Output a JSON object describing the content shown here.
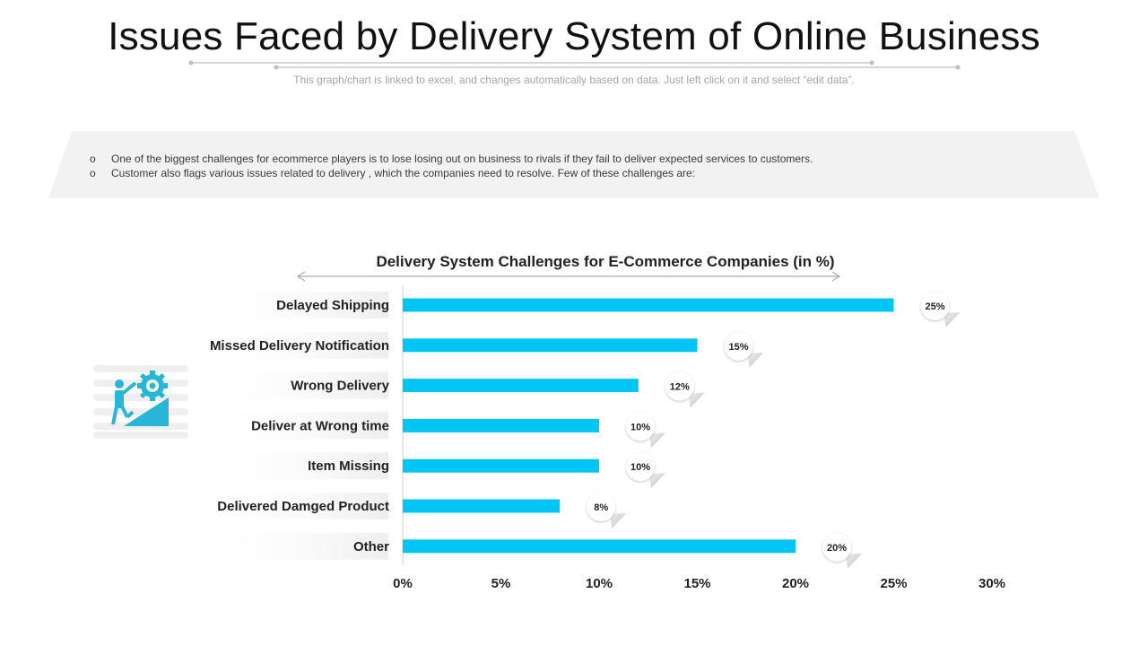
{
  "header": {
    "title": "Issues Faced by Delivery System of Online Business",
    "subtitle": "This graph/chart is linked to excel, and changes automatically based on data. Just left click on it and select “edit data”."
  },
  "bullets": [
    {
      "marker": "o",
      "text": "One of the biggest challenges for ecommerce players is to lose losing out on business to rivals  if they fail to deliver  expected services  to customers."
    },
    {
      "marker": "o",
      "text": "Customer also flags various  issues related to delivery  , which the companies need to resolve.  Few of these challenges are:"
    }
  ],
  "icon": {
    "name": "person-climbing-gear-icon"
  },
  "colors": {
    "bar": "#00c5f5",
    "icon": "#27b6d8",
    "banner": "#f2f2f2"
  },
  "chart_data": {
    "type": "bar",
    "orientation": "horizontal",
    "title": "Delivery System Challenges for E-Commerce Companies (in %)",
    "categories": [
      "Delayed Shipping",
      "Missed Delivery Notification",
      "Wrong Delivery",
      "Deliver at Wrong time",
      "Item Missing",
      "Delivered Damged Product",
      "Other"
    ],
    "values": [
      25,
      15,
      12,
      10,
      10,
      8,
      20
    ],
    "data_labels": [
      "25%",
      "15%",
      "12%",
      "10%",
      "10%",
      "8%",
      "20%"
    ],
    "xlim": [
      0,
      30
    ],
    "xticks": [
      "0%",
      "5%",
      "10%",
      "15%",
      "20%",
      "25%",
      "30%"
    ],
    "grid": false,
    "legend": "none"
  }
}
